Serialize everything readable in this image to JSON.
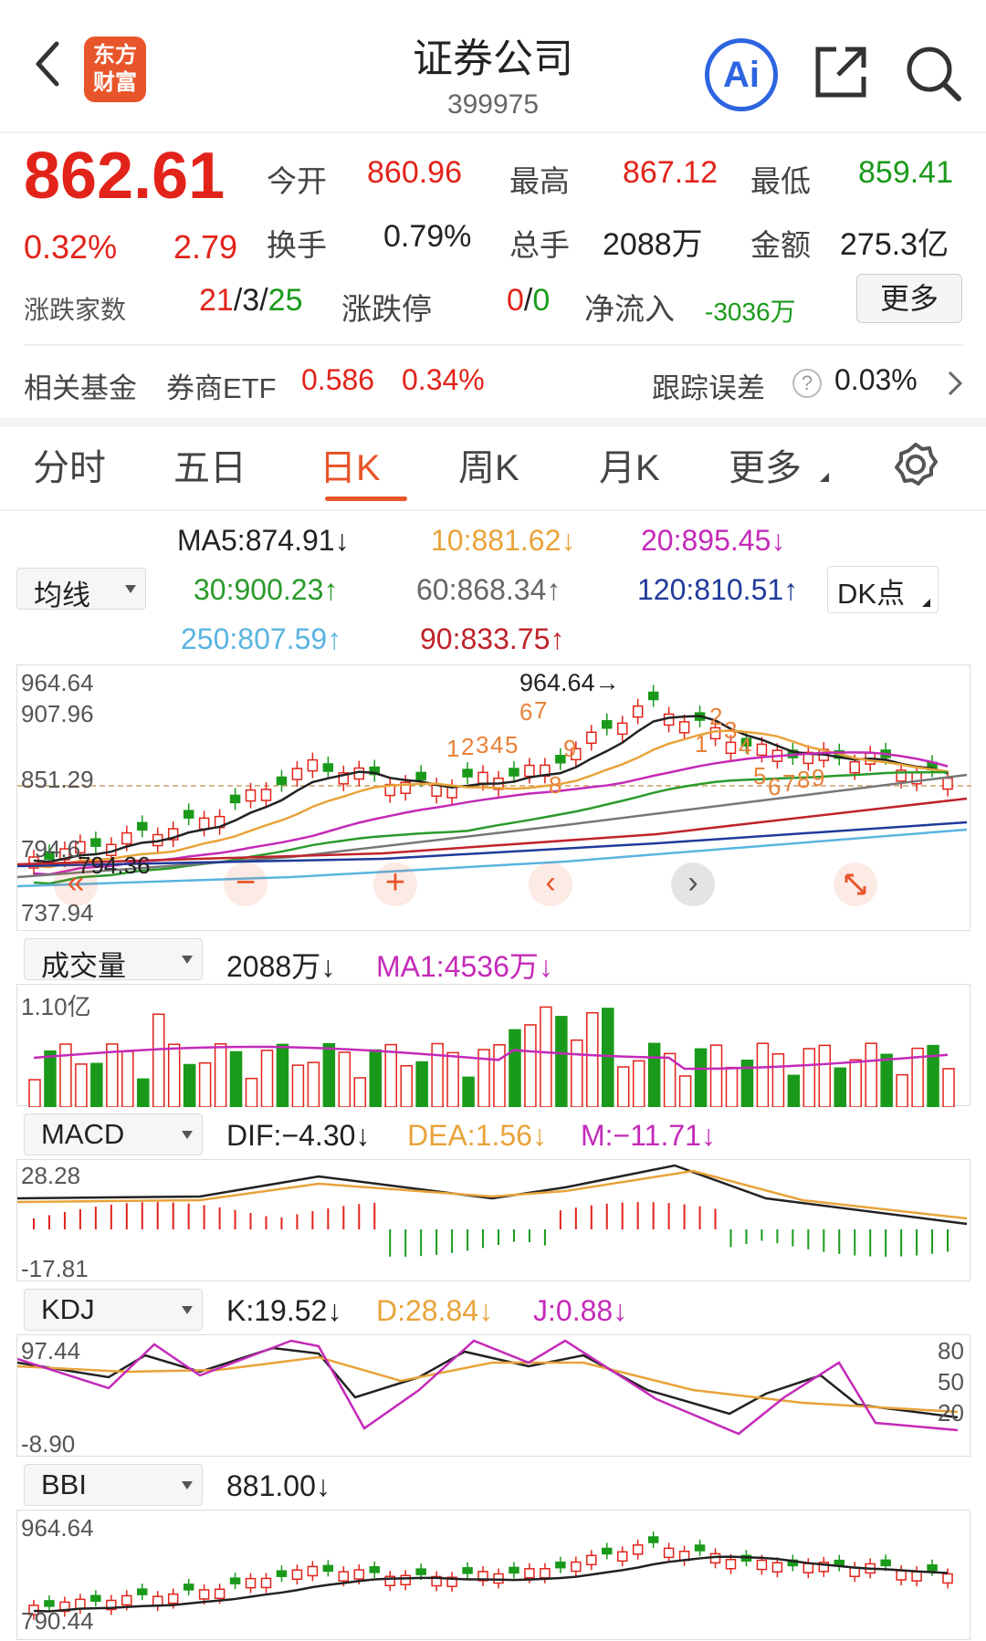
{
  "header": {
    "title": "证券公司",
    "code": "399975",
    "logo_line1": "东方",
    "logo_line2": "财富",
    "ai_label": "Ai"
  },
  "quote": {
    "price": "862.61",
    "pct": "0.32%",
    "change": "2.79",
    "open_label": "今开",
    "open": "860.96",
    "high_label": "最高",
    "high": "867.12",
    "low_label": "最低",
    "low": "859.41",
    "turnover_label": "换手",
    "turnover": "0.79%",
    "volume_label": "总手",
    "volume": "2088万",
    "amount_label": "金额",
    "amount": "275.3亿",
    "breadth_label": "涨跌家数",
    "breadth_up": "21",
    "breadth_sep1": "/",
    "breadth_flat": "3",
    "breadth_sep2": "/",
    "breadth_down": "25",
    "limit_label": "涨跌停",
    "limit_up": "0",
    "limit_sep": "/",
    "limit_down": "0",
    "netflow_label": "净流入",
    "netflow": "-3036万",
    "more_button": "更多"
  },
  "fund": {
    "label": "相关基金",
    "name": "券商ETF",
    "price": "0.586",
    "pct": "0.34%",
    "tracking_label": "跟踪误差",
    "tracking_value": "0.03%",
    "help": "?"
  },
  "tabs": [
    "分时",
    "五日",
    "日K",
    "周K",
    "月K",
    "更多"
  ],
  "active_tab": "日K",
  "ma": {
    "selector": "均线",
    "ma5": "MA5:874.91↓",
    "ma10": "10:881.62↓",
    "ma20": "20:895.45↓",
    "ma30": "30:900.23↑",
    "ma60": "60:868.34↑",
    "ma120": "120:810.51↑",
    "ma250": "250:807.59↑",
    "ma90": "90:833.75↑",
    "dk_button": "DK点"
  },
  "kline": {
    "top": "964.64",
    "upper": "907.96",
    "mid": "851.29",
    "lower": "794.36",
    "bottom": "737.94",
    "low_label_partial": "794.6",
    "max_label": "964.64→",
    "nine_up": [
      "1",
      "2",
      "3",
      "4",
      "5",
      "6",
      "7",
      "8",
      "9"
    ],
    "nine_down": [
      "1",
      "2",
      "3",
      "4",
      "5",
      "6",
      "7",
      "8",
      "9"
    ]
  },
  "volume": {
    "selector": "成交量",
    "value": "2088万↓",
    "ma1": "MA1:4536万↓",
    "axis_top": "1.10亿"
  },
  "macd": {
    "selector": "MACD",
    "dif": "DIF:−4.30↓",
    "dea": "DEA:1.56↓",
    "m": "M:−11.71↓",
    "axis_top": "28.28",
    "axis_bottom": "-17.81"
  },
  "kdj": {
    "selector": "KDJ",
    "k": "K:19.52↓",
    "d": "D:28.84↓",
    "j": "J:0.88↓",
    "axis_top": "97.44",
    "axis_bottom": "-8.90",
    "lvl80": "80",
    "lvl50": "50",
    "lvl20": "20"
  },
  "bbi": {
    "selector": "BBI",
    "value": "881.00↓",
    "axis_top": "964.64",
    "axis_bottom": "790.44"
  },
  "colors": {
    "up": "#e2231a",
    "down": "#1a9a1a",
    "ma5": "#222222",
    "ma10": "#e8a33a",
    "ma20": "#c42ab8",
    "ma30": "#2a9a2a",
    "ma60": "#777777",
    "ma120": "#1f3a9a",
    "ma250": "#5ab4e0",
    "ma90": "#c0232b"
  }
}
